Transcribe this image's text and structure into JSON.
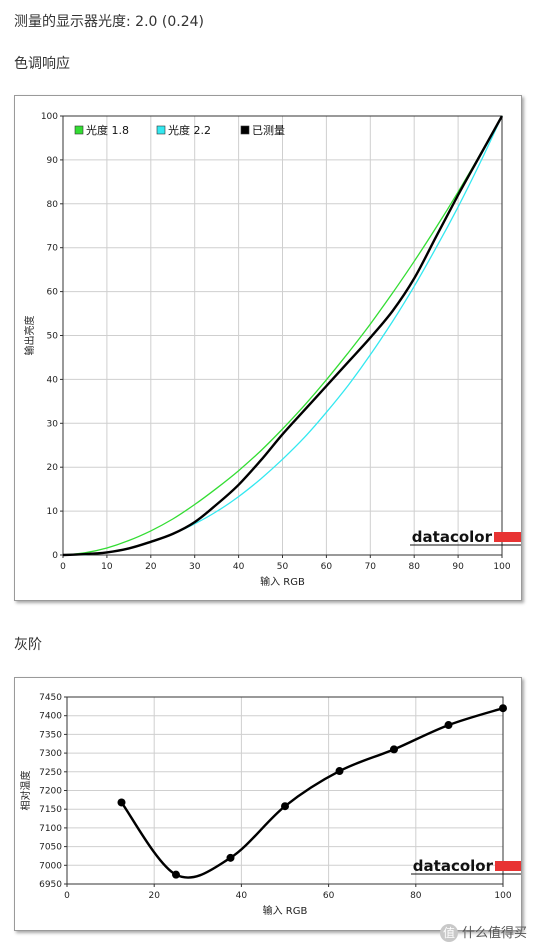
{
  "header": {
    "measured_label": "测量的显示器光度: 2.0 (0.24)",
    "section1_title": "色调响应",
    "section2_title": "灰阶"
  },
  "watermark": {
    "badge": "值",
    "text": "什么值得买"
  },
  "colors": {
    "gamma18": "#33dd33",
    "gamma22": "#33e8f0",
    "measured": "#000000",
    "brand_bar": "#e83333"
  },
  "chart_data": [
    {
      "type": "line",
      "title": "",
      "xlabel": "输入 RGB",
      "ylabel": "输出亮度",
      "xlim": [
        0,
        100
      ],
      "ylim": [
        0,
        100
      ],
      "xticks": [
        0,
        10,
        20,
        30,
        40,
        50,
        60,
        70,
        80,
        90,
        100
      ],
      "yticks": [
        0,
        10,
        20,
        30,
        40,
        50,
        60,
        70,
        80,
        90,
        100
      ],
      "grid": true,
      "legend_position": "top-left",
      "brand": "datacolor",
      "series": [
        {
          "name": "光度 1.8",
          "color": "#33dd33",
          "x": [
            0,
            5,
            10,
            15,
            20,
            25,
            30,
            35,
            40,
            45,
            50,
            55,
            60,
            65,
            70,
            75,
            80,
            85,
            90,
            95,
            100
          ],
          "y": [
            0,
            0.5,
            1.6,
            3.3,
            5.5,
            8.2,
            11.5,
            15.2,
            19.2,
            23.7,
            28.7,
            34.1,
            39.9,
            46.1,
            52.6,
            59.6,
            66.9,
            74.6,
            82.7,
            91.2,
            100
          ]
        },
        {
          "name": "光度 2.2",
          "color": "#33e8f0",
          "x": [
            0,
            5,
            10,
            15,
            20,
            25,
            30,
            35,
            40,
            45,
            50,
            55,
            60,
            65,
            70,
            75,
            80,
            85,
            90,
            95,
            100
          ],
          "y": [
            0,
            0.1,
            0.6,
            1.5,
            2.9,
            4.8,
            7.1,
            9.9,
            13.3,
            17.3,
            21.8,
            26.8,
            32.5,
            38.7,
            45.6,
            53.1,
            61.2,
            70.0,
            79.3,
            89.3,
            100
          ]
        },
        {
          "name": "已测量",
          "color": "#000000",
          "x": [
            0,
            5,
            10,
            15,
            20,
            25,
            30,
            35,
            40,
            45,
            50,
            55,
            60,
            65,
            70,
            75,
            80,
            85,
            90,
            95,
            100
          ],
          "y": [
            0,
            0.2,
            0.6,
            1.5,
            3.0,
            4.8,
            7.5,
            11.5,
            16.0,
            21.5,
            27.5,
            33.0,
            38.5,
            44.0,
            49.5,
            55.5,
            63.0,
            72.5,
            82.0,
            91.0,
            100
          ]
        }
      ]
    },
    {
      "type": "line",
      "title": "",
      "xlabel": "输入 RGB",
      "ylabel": "相对温度",
      "xlim": [
        0,
        100
      ],
      "ylim": [
        6950,
        7450
      ],
      "xticks": [
        0,
        20,
        40,
        60,
        80,
        100
      ],
      "yticks": [
        6950,
        7000,
        7050,
        7100,
        7150,
        7200,
        7250,
        7300,
        7350,
        7400,
        7450
      ],
      "grid": true,
      "brand": "datacolor",
      "series": [
        {
          "name": "",
          "color": "#000000",
          "x": [
            12.5,
            25,
            37.5,
            50,
            62.5,
            75,
            87.5,
            100
          ],
          "y": [
            7168,
            6975,
            7020,
            7158,
            7252,
            7310,
            7375,
            7420
          ]
        }
      ]
    }
  ]
}
